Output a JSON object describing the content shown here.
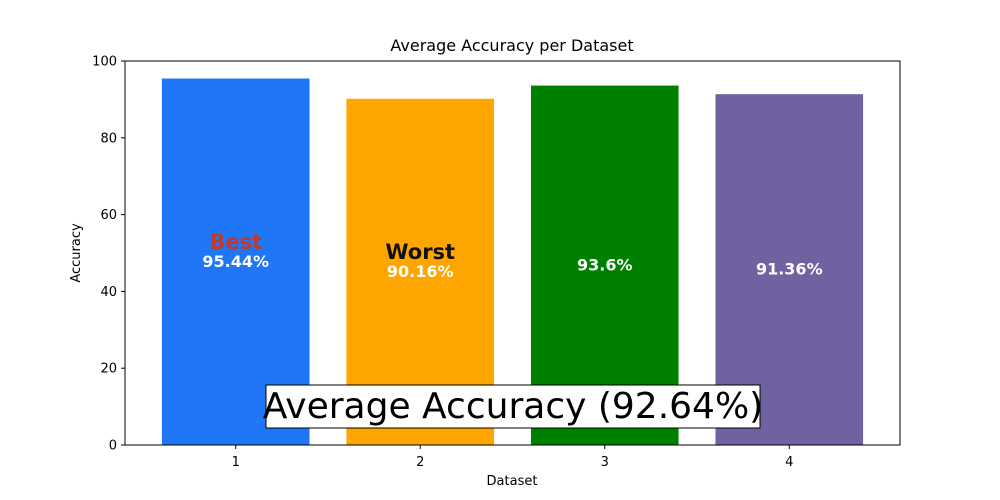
{
  "chart_data": {
    "type": "bar",
    "title": "Average Accuracy per Dataset",
    "xlabel": "Dataset",
    "ylabel": "Accuracy",
    "ylim": [
      0,
      100
    ],
    "yticks": [
      0,
      20,
      40,
      60,
      80,
      100
    ],
    "categories": [
      "1",
      "2",
      "3",
      "4"
    ],
    "values": [
      95.44,
      90.16,
      93.6,
      91.36
    ],
    "value_labels": [
      "95.44%",
      "90.16%",
      "93.6%",
      "91.36%"
    ],
    "bar_colors": [
      "#1f77f7",
      "#ffa500",
      "#008000",
      "#7062a0"
    ],
    "grid": false,
    "annotations": {
      "best": {
        "text": "Best",
        "index": 0,
        "color": "#c0392b"
      },
      "worst": {
        "text": "Worst",
        "index": 1,
        "color": "#111111"
      },
      "average_box": "Average Accuracy (92.64%)"
    }
  }
}
